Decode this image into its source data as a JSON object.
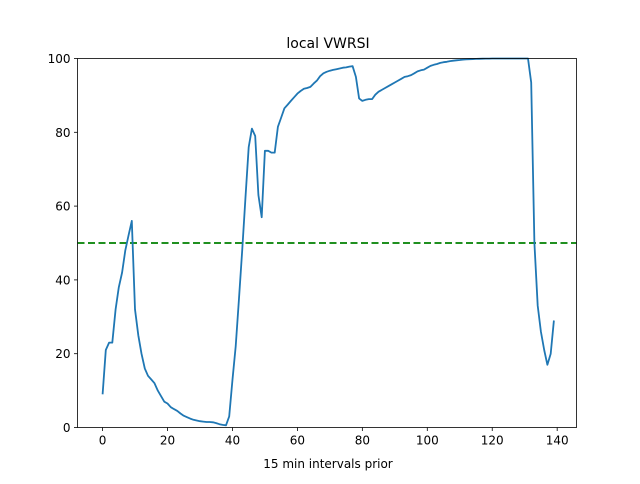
{
  "chart_data": {
    "type": "line",
    "title": "local VWRSI",
    "xlabel": "15 min intervals prior",
    "ylabel": "",
    "xlim": [
      -6.95,
      145.95
    ],
    "ylim": [
      0,
      100
    ],
    "xticks": [
      0,
      20,
      40,
      60,
      80,
      100,
      120,
      140
    ],
    "yticks": [
      0,
      20,
      40,
      60,
      80,
      100
    ],
    "grid": false,
    "series": [
      {
        "name": "local VWRSI",
        "color": "#1f77b4",
        "x": [
          0,
          1,
          2,
          3,
          4,
          5,
          6,
          7,
          8,
          9,
          10,
          11,
          12,
          13,
          14,
          15,
          16,
          17,
          18,
          19,
          20,
          21,
          22,
          23,
          24,
          25,
          26,
          27,
          28,
          29,
          30,
          31,
          32,
          33,
          34,
          35,
          36,
          37,
          38,
          39,
          40,
          41,
          42,
          43,
          44,
          45,
          46,
          47,
          48,
          49,
          50,
          51,
          52,
          53,
          54,
          55,
          56,
          57,
          58,
          59,
          60,
          61,
          62,
          63,
          64,
          65,
          66,
          67,
          68,
          69,
          70,
          71,
          72,
          73,
          74,
          75,
          76,
          77,
          78,
          79,
          80,
          81,
          82,
          83,
          84,
          85,
          86,
          87,
          88,
          89,
          90,
          91,
          92,
          93,
          94,
          95,
          96,
          97,
          98,
          99,
          100,
          101,
          102,
          103,
          104,
          105,
          106,
          107,
          108,
          109,
          110,
          111,
          112,
          113,
          114,
          115,
          116,
          117,
          118,
          119,
          120,
          121,
          122,
          123,
          124,
          125,
          126,
          127,
          128,
          129,
          130,
          131,
          132,
          133,
          134,
          135,
          136,
          137,
          138,
          139
        ],
        "values": [
          9,
          21,
          23,
          23,
          32,
          38,
          42,
          48,
          52,
          56,
          32,
          25,
          20,
          16,
          14,
          13,
          12,
          10,
          8.5,
          7,
          6.5,
          5.5,
          5,
          4.5,
          3.8,
          3.2,
          2.8,
          2.4,
          2.1,
          1.9,
          1.7,
          1.6,
          1.5,
          1.5,
          1.4,
          1.2,
          0.9,
          0.7,
          0.6,
          3,
          13,
          22,
          35,
          48,
          62,
          76,
          81,
          79,
          63,
          57,
          75,
          75,
          74.5,
          74.5,
          81.5,
          84,
          86.5,
          87.5,
          88.5,
          89.5,
          90.5,
          91.2,
          91.8,
          92,
          92.3,
          93.2,
          94,
          95.2,
          96,
          96.4,
          96.7,
          96.9,
          97.1,
          97.3,
          97.5,
          97.6,
          97.8,
          97.9,
          95,
          89.2,
          88.5,
          88.8,
          89,
          89,
          90.2,
          91,
          91.5,
          92,
          92.5,
          93,
          93.5,
          94,
          94.5,
          95,
          95.2,
          95.5,
          96,
          96.5,
          96.8,
          97,
          97.5,
          98,
          98.3,
          98.5,
          98.8,
          99,
          99.1,
          99.3,
          99.4,
          99.5,
          99.6,
          99.7,
          99.75,
          99.8,
          99.85,
          99.9,
          99.92,
          99.95,
          99.97,
          99.98,
          100,
          100,
          100,
          100,
          100,
          100,
          100,
          100,
          100,
          100,
          100,
          100,
          93.5,
          50,
          33,
          26,
          21,
          17,
          20,
          29
        ]
      }
    ],
    "reference_line": {
      "y": 50,
      "color": "#008000",
      "style": "dashed"
    }
  }
}
